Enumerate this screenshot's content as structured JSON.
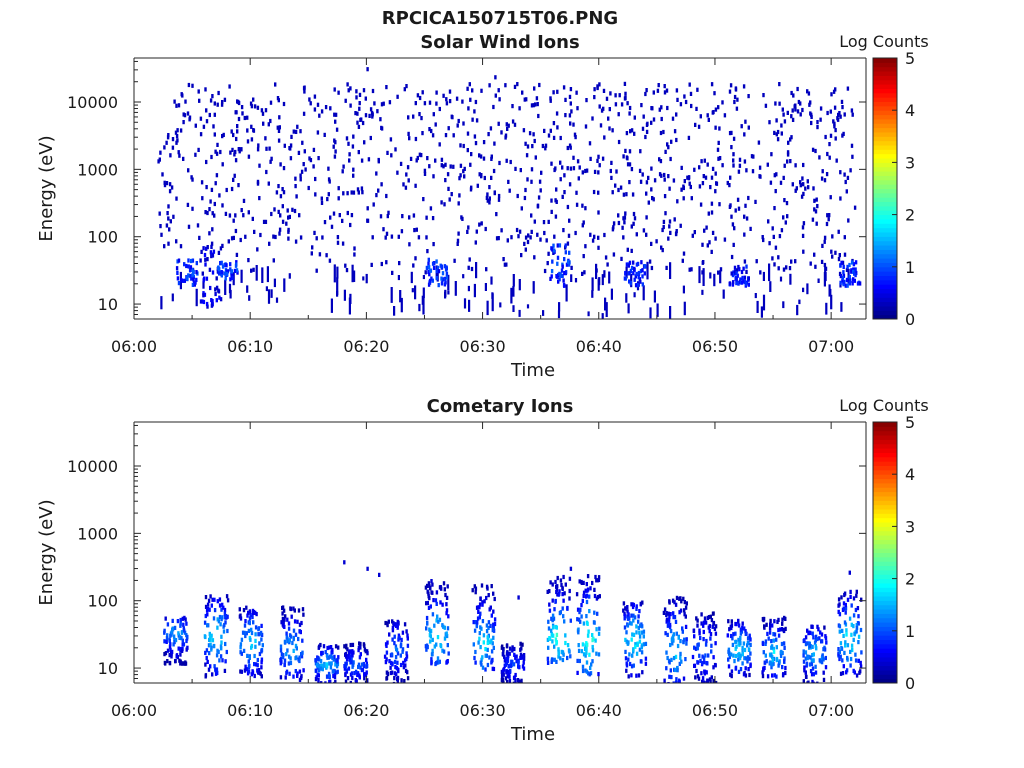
{
  "figure_title": "RPCICA150715T06.PNG",
  "chart_data": [
    {
      "type": "heatmap",
      "title": "Solar Wind Ions",
      "xlabel": "Time",
      "ylabel": "Energy (eV)",
      "x_range": [
        "06:00",
        "07:03"
      ],
      "x_ticks": [
        "06:00",
        "06:10",
        "06:20",
        "06:30",
        "06:40",
        "06:50",
        "07:00"
      ],
      "y_scale": "log",
      "y_range": [
        6,
        45000
      ],
      "y_ticks": [
        "10",
        "100",
        "1000",
        "10000"
      ],
      "colorbar": {
        "label": "Log Counts",
        "range": [
          0,
          5
        ],
        "ticks": [
          "0",
          "1",
          "2",
          "3",
          "4",
          "5"
        ],
        "colormap": "jet"
      },
      "data_start": "06:02",
      "data_end": "07:02",
      "background_counts_energy_range": [
        100,
        20000
      ],
      "background_log_counts": 0.3,
      "low_energy_bursts": [
        {
          "time": "06:04.5",
          "energy_range": [
            20,
            50
          ],
          "log_counts": 1.0
        },
        {
          "time": "06:06.5",
          "energy_range": [
            8,
            80
          ],
          "log_counts": 0.6
        },
        {
          "time": "06:08",
          "energy_range": [
            25,
            45
          ],
          "log_counts": 1.0
        },
        {
          "time": "06:26",
          "energy_range": [
            20,
            50
          ],
          "log_counts": 1.0
        },
        {
          "time": "06:36.5",
          "energy_range": [
            20,
            80
          ],
          "log_counts": 1.0
        },
        {
          "time": "06:43",
          "energy_range": [
            20,
            45
          ],
          "log_counts": 0.9
        },
        {
          "time": "06:52",
          "energy_range": [
            20,
            40
          ],
          "log_counts": 0.8
        },
        {
          "time": "07:01.5",
          "energy_range": [
            20,
            45
          ],
          "log_counts": 1.0
        }
      ],
      "isolated_high_energy_points": [
        {
          "time": "06:20",
          "energy": 33000
        },
        {
          "time": "06:31",
          "energy": 25000
        },
        {
          "time": "06:30.5",
          "energy": 19000
        }
      ]
    },
    {
      "type": "heatmap",
      "title": "Cometary Ions",
      "xlabel": "Time",
      "ylabel": "Energy (eV)",
      "x_range": [
        "06:00",
        "07:03"
      ],
      "x_ticks": [
        "06:00",
        "06:10",
        "06:20",
        "06:30",
        "06:40",
        "06:50",
        "07:00"
      ],
      "y_scale": "log",
      "y_range": [
        6,
        45000
      ],
      "y_ticks": [
        "10",
        "100",
        "1000",
        "10000"
      ],
      "colorbar": {
        "label": "Log Counts",
        "range": [
          0,
          5
        ],
        "ticks": [
          "0",
          "1",
          "2",
          "3",
          "4",
          "5"
        ],
        "colormap": "jet"
      },
      "bursts": [
        {
          "time": "06:03.5",
          "energy_range": [
            12,
            65
          ],
          "peak_energy": 35,
          "peak_log_counts": 1.5
        },
        {
          "time": "06:07",
          "energy_range": [
            8,
            130
          ],
          "peak_energy": 32,
          "peak_log_counts": 2.0
        },
        {
          "time": "06:10",
          "energy_range": [
            8,
            90
          ],
          "peak_energy": 25,
          "peak_log_counts": 1.8
        },
        {
          "time": "06:13.5",
          "energy_range": [
            7,
            90
          ],
          "peak_energy": 20,
          "peak_log_counts": 1.6
        },
        {
          "time": "06:16.5",
          "energy_range": [
            6,
            25
          ],
          "peak_energy": 12,
          "peak_log_counts": 1.7
        },
        {
          "time": "06:19",
          "energy_range": [
            6,
            25
          ],
          "peak_energy": 12,
          "peak_log_counts": 1.2
        },
        {
          "time": "06:22.5",
          "energy_range": [
            6,
            55
          ],
          "peak_energy": 20,
          "peak_log_counts": 1.2
        },
        {
          "time": "06:26",
          "energy_range": [
            12,
            200
          ],
          "peak_energy": 32,
          "peak_log_counts": 2.0
        },
        {
          "time": "06:30",
          "energy_range": [
            10,
            200
          ],
          "peak_energy": 25,
          "peak_log_counts": 1.9
        },
        {
          "time": "06:32.5",
          "energy_range": [
            6,
            25
          ],
          "peak_energy": 12,
          "peak_log_counts": 1.0
        },
        {
          "time": "06:36.5",
          "energy_range": [
            12,
            250
          ],
          "peak_energy": 30,
          "peak_log_counts": 2.3
        },
        {
          "time": "06:39",
          "energy_range": [
            8,
            270
          ],
          "peak_energy": 28,
          "peak_log_counts": 2.2
        },
        {
          "time": "06:43",
          "energy_range": [
            8,
            110
          ],
          "peak_energy": 28,
          "peak_log_counts": 2.0
        },
        {
          "time": "06:46.5",
          "energy_range": [
            6,
            120
          ],
          "peak_energy": 20,
          "peak_log_counts": 1.8
        },
        {
          "time": "06:49",
          "energy_range": [
            6,
            70
          ],
          "peak_energy": 20,
          "peak_log_counts": 1.2
        },
        {
          "time": "06:52",
          "energy_range": [
            8,
            55
          ],
          "peak_energy": 20,
          "peak_log_counts": 1.9
        },
        {
          "time": "06:55",
          "energy_range": [
            8,
            60
          ],
          "peak_energy": 18,
          "peak_log_counts": 1.8
        },
        {
          "time": "06:58.5",
          "energy_range": [
            6,
            45
          ],
          "peak_energy": 18,
          "peak_log_counts": 1.7
        },
        {
          "time": "07:01.5",
          "energy_range": [
            8,
            150
          ],
          "peak_energy": 30,
          "peak_log_counts": 2.0
        }
      ],
      "isolated_points": [
        {
          "time": "06:18",
          "energy": 400
        },
        {
          "time": "06:20",
          "energy": 320
        },
        {
          "time": "06:21",
          "energy": 260
        },
        {
          "time": "06:25.5",
          "energy": 210
        },
        {
          "time": "06:33",
          "energy": 120
        },
        {
          "time": "06:37.5",
          "energy": 320
        },
        {
          "time": "07:01.5",
          "energy": 280
        }
      ]
    }
  ]
}
